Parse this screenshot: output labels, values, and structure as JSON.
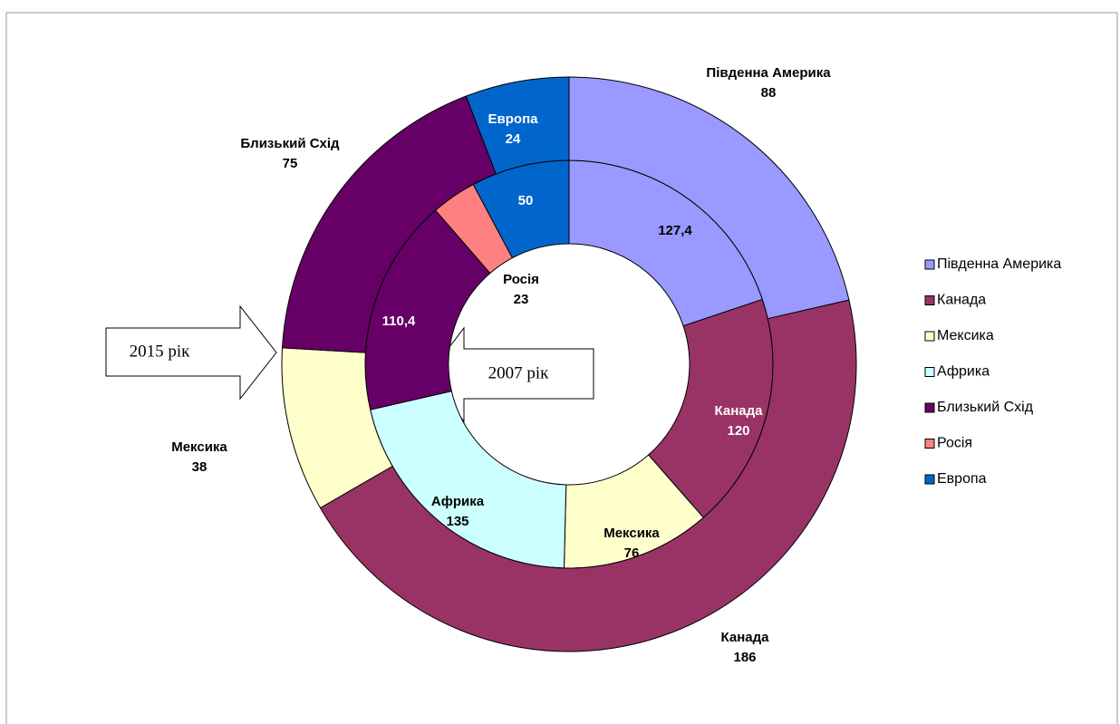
{
  "chart_data": {
    "type": "doughnut",
    "categories": [
      "Південна Америка",
      "Канада",
      "Мексика",
      "Африка",
      "Близький Схід",
      "Росія",
      "Европа"
    ],
    "colors": [
      "#9999ff",
      "#993366",
      "#ffffcc",
      "#ccffff",
      "#660066",
      "#ff8080",
      "#0066cc"
    ],
    "series": [
      {
        "name": "2007 рік",
        "values": [
          127.4,
          120,
          76,
          135,
          110.4,
          23,
          50
        ],
        "value_labels": [
          "127,4",
          "120",
          "76",
          "135",
          "110,4",
          "23",
          "50"
        ]
      },
      {
        "name": "2015 рік",
        "values": [
          88,
          186,
          38,
          null,
          75,
          null,
          24
        ],
        "value_labels": [
          "88",
          "186",
          "38",
          null,
          "75",
          null,
          "24"
        ]
      }
    ],
    "legend": "right"
  }
}
